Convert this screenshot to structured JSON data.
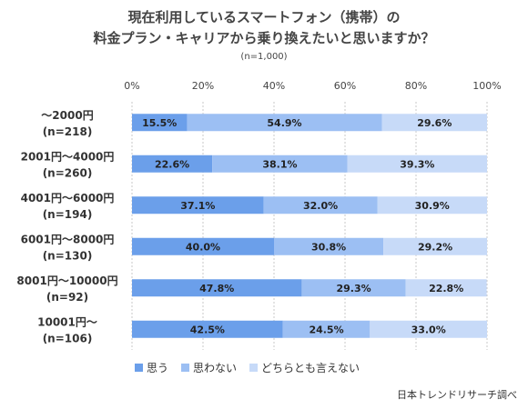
{
  "chart_data": {
    "type": "bar",
    "orientation": "horizontal",
    "stacked": "percent",
    "title_line1": "現在利用しているスマートフォン（携帯）の",
    "title_line2": "料金プラン・キャリアから乗り換えたいと思いますか？",
    "subtitle": "(n=1,000)",
    "categories": [
      [
        "～2000円",
        "(n=218)"
      ],
      [
        "2001円～4000円",
        "(n=260)"
      ],
      [
        "4001円～6000円",
        "(n=194)"
      ],
      [
        "6001円～8000円",
        "(n=130)"
      ],
      [
        "8001円～10000円",
        "(n=92)"
      ],
      [
        "10001円～",
        "(n=106)"
      ]
    ],
    "series": [
      {
        "name": "思う",
        "values": [
          15.5,
          22.6,
          37.1,
          40.0,
          47.8,
          42.5
        ],
        "labels": [
          "15.5%",
          "22.6%",
          "37.1%",
          "40.0%",
          "47.8%",
          "42.5%"
        ],
        "color": "#6b9fea"
      },
      {
        "name": "思わない",
        "values": [
          54.9,
          38.1,
          32.0,
          30.8,
          29.3,
          24.5
        ],
        "labels": [
          "54.9%",
          "38.1%",
          "32.0%",
          "30.8%",
          "29.3%",
          "24.5%"
        ],
        "color": "#9cbff3"
      },
      {
        "name": "どちらとも言えない",
        "values": [
          29.6,
          39.3,
          30.9,
          29.2,
          22.8,
          33.0
        ],
        "labels": [
          "29.6%",
          "39.3%",
          "30.9%",
          "29.2%",
          "22.8%",
          "33.0%"
        ],
        "color": "#c7daf8"
      }
    ],
    "x_ticks": [
      "0%",
      "20%",
      "40%",
      "60%",
      "80%",
      "100%"
    ],
    "xlim": [
      0,
      100
    ],
    "grid": true,
    "legend_position": "bottom-left"
  },
  "source": "日本トレンドリサーチ調べ"
}
